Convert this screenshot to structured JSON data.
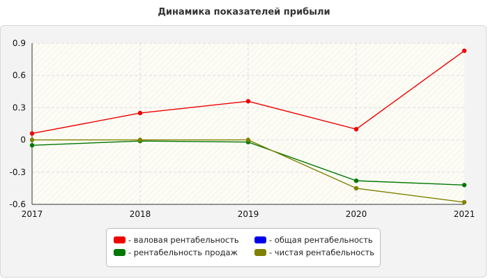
{
  "title": "Динамика показателей прибыли",
  "chart_data": {
    "type": "line",
    "x": [
      "2017",
      "2018",
      "2019",
      "2020",
      "2021"
    ],
    "ylim": [
      -0.6,
      0.9
    ],
    "yticks": [
      "0.9",
      "0.6",
      "0.3",
      "0",
      "-0.3",
      "-0.6"
    ],
    "ytick_values": [
      0.9,
      0.6,
      0.3,
      0,
      -0.3,
      -0.6
    ],
    "grid": true,
    "legend_position": "bottom",
    "series": [
      {
        "name": "- валовая рентабельность",
        "color": "#ee0000",
        "values": [
          0.06,
          0.25,
          0.36,
          0.1,
          0.83
        ]
      },
      {
        "name": "- общая рентабельность",
        "color": "#0000ee",
        "values": [
          null,
          null,
          null,
          null,
          null
        ]
      },
      {
        "name": "- рентабельность продаж",
        "color": "#007700",
        "values": [
          -0.05,
          -0.01,
          -0.02,
          -0.38,
          -0.42
        ]
      },
      {
        "name": "- чистая рентабельность",
        "color": "#808000",
        "values": [
          0.0,
          0.0,
          0.0,
          -0.45,
          -0.58
        ]
      }
    ]
  }
}
